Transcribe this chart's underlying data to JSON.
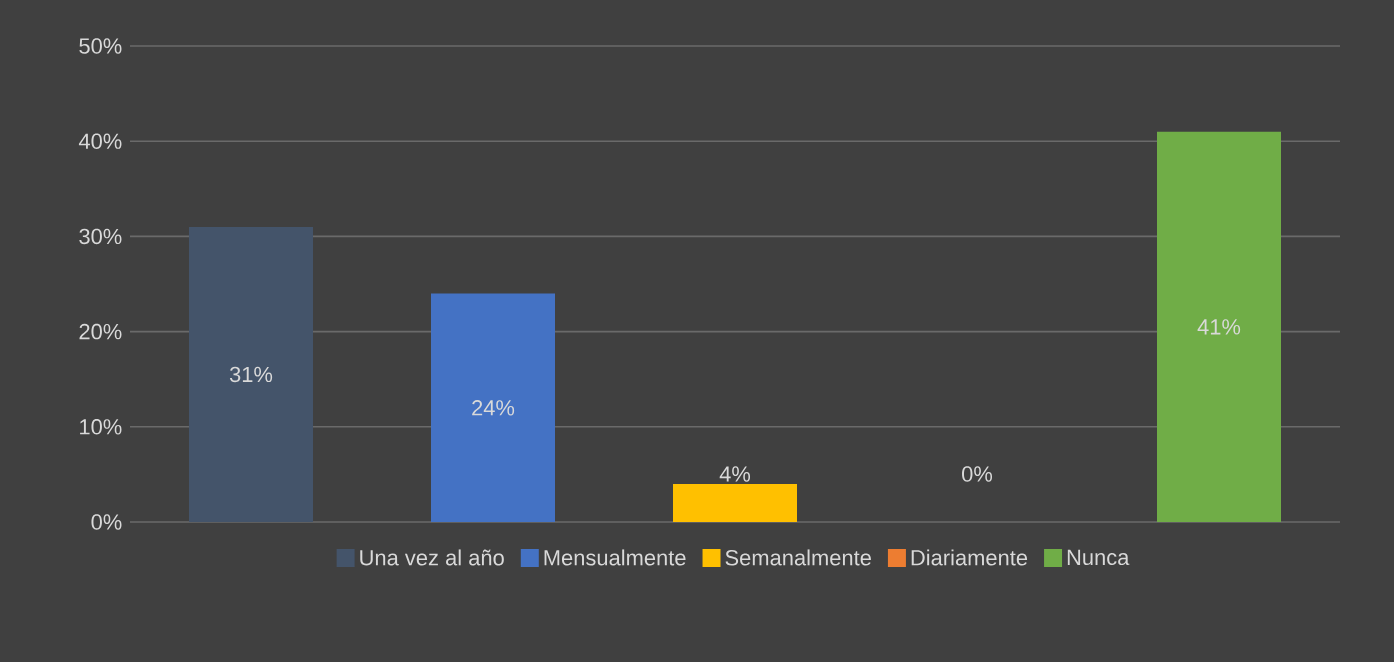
{
  "chart_data": {
    "type": "bar",
    "categories": [
      null,
      null,
      null,
      null,
      null
    ],
    "series": [
      {
        "name": "Una vez al año",
        "color": "#44546a",
        "values": [
          31,
          null,
          null,
          null,
          null
        ],
        "value_labels": [
          "31%",
          null,
          null,
          null,
          null
        ]
      },
      {
        "name": "Mensualmente",
        "color": "#4472c4",
        "values": [
          null,
          24,
          null,
          null,
          null
        ],
        "value_labels": [
          null,
          "24%",
          null,
          null,
          null
        ]
      },
      {
        "name": "Semanalmente",
        "color": "#ffc000",
        "values": [
          null,
          null,
          4,
          null,
          null
        ],
        "value_labels": [
          null,
          null,
          "4%",
          null,
          null
        ]
      },
      {
        "name": "Diariamente",
        "color": "#ed7d31",
        "values": [
          null,
          null,
          null,
          0,
          null
        ],
        "value_labels": [
          null,
          null,
          null,
          "0%",
          null
        ]
      },
      {
        "name": "Nunca",
        "color": "#70ad47",
        "values": [
          null,
          null,
          null,
          null,
          41
        ],
        "value_labels": [
          null,
          null,
          null,
          null,
          "41%"
        ]
      }
    ],
    "ylim": [
      0,
      50
    ],
    "yticks": [
      {
        "value": 0,
        "label": "0%"
      },
      {
        "value": 10,
        "label": "10%"
      },
      {
        "value": 20,
        "label": "20%"
      },
      {
        "value": 30,
        "label": "30%"
      },
      {
        "value": 40,
        "label": "40%"
      },
      {
        "value": 50,
        "label": "50%"
      }
    ],
    "grid": "y",
    "legend": "bottom"
  }
}
